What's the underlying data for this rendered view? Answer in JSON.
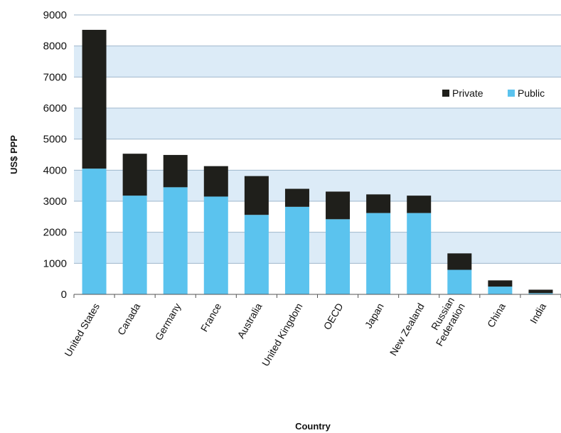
{
  "chart_data": {
    "type": "bar",
    "stacked": true,
    "categories": [
      "United States",
      "Canada",
      "Germany",
      "France",
      "Australia",
      "United Kingdom",
      "OECD",
      "Japan",
      "New Zealand",
      "Russian Federation",
      "China",
      "India"
    ],
    "category_lines": [
      [
        "United States"
      ],
      [
        "Canada"
      ],
      [
        "Germany"
      ],
      [
        "France"
      ],
      [
        "Australia"
      ],
      [
        "United Kingdom"
      ],
      [
        "OECD"
      ],
      [
        "Japan"
      ],
      [
        "New Zealand"
      ],
      [
        "Russian",
        "Federation"
      ],
      [
        "China"
      ],
      [
        "India"
      ]
    ],
    "series": [
      {
        "name": "Public",
        "color": "#5bc3ee",
        "values": [
          4050,
          3180,
          3450,
          3150,
          2560,
          2820,
          2420,
          2620,
          2620,
          790,
          250,
          40
        ]
      },
      {
        "name": "Private",
        "color": "#1f1f1b",
        "values": [
          4470,
          1350,
          1040,
          980,
          1250,
          580,
          890,
          600,
          560,
          530,
          200,
          110
        ]
      }
    ],
    "xlabel": "Country",
    "ylabel": "US$ PPP",
    "ylim": [
      0,
      9000
    ],
    "yticks": [
      0,
      1000,
      2000,
      3000,
      4000,
      5000,
      6000,
      7000,
      8000,
      9000
    ],
    "grid": true,
    "band_color": "#dcebf7",
    "legend": {
      "position": "right",
      "order": [
        "Private",
        "Public"
      ]
    }
  }
}
